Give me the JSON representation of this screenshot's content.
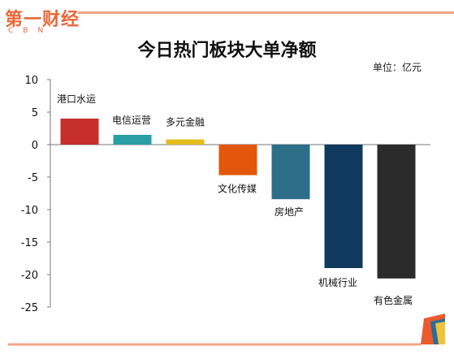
{
  "logo": {
    "main": "第一财经",
    "sub": "CBN"
  },
  "chart_data": {
    "type": "bar",
    "title": "今日热门板块大单净额",
    "unit": "单位：亿元",
    "categories": [
      "港口水运",
      "电信运营",
      "多元金融",
      "文化传媒",
      "房地产",
      "机械行业",
      "有色金属"
    ],
    "values": [
      4.0,
      1.5,
      0.8,
      -4.7,
      -8.4,
      -19.0,
      -20.6
    ],
    "colors": [
      "#c62f2c",
      "#2a9ea5",
      "#e3bd1e",
      "#e3570d",
      "#2d6e89",
      "#0f3a5d",
      "#2b2b2b"
    ],
    "yticks": [
      "10",
      "5",
      "0",
      "-5",
      "-10",
      "-15",
      "-20",
      "-25"
    ],
    "ylim": [
      -25,
      10
    ],
    "grid": false
  }
}
